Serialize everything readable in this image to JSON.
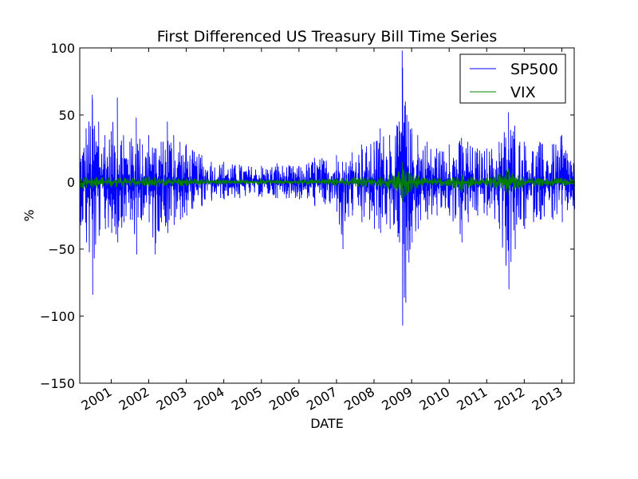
{
  "chart_data": {
    "type": "line",
    "title": "First Differenced US Treasury Bill Time Series",
    "xlabel": "DATE",
    "ylabel": "%",
    "ylim": [
      -150,
      100
    ],
    "yticks": [
      100,
      50,
      0,
      -50,
      -100,
      -150
    ],
    "ytick_labels": [
      "100",
      "50",
      "0",
      "−50",
      "−100",
      "−150"
    ],
    "xlim": [
      "2000-03-01",
      "2013-05-01"
    ],
    "xticks": [
      "2001-01-01",
      "2002-01-01",
      "2003-01-01",
      "2004-01-01",
      "2005-01-01",
      "2006-01-01",
      "2007-01-01",
      "2008-01-01",
      "2009-01-01",
      "2010-01-01",
      "2011-01-01",
      "2012-01-01",
      "2013-01-01"
    ],
    "xtick_labels": [
      "2001",
      "2002",
      "2003",
      "2004",
      "2005",
      "2006",
      "2007",
      "2008",
      "2009",
      "2010",
      "2011",
      "2012",
      "2013"
    ],
    "grid": false,
    "legend_position": "top-right",
    "series": [
      {
        "name": "SP500",
        "color": "#0000ff",
        "envelope": {
          "x": [
            "2000-03-01",
            "2000-05-01",
            "2000-07-01",
            "2000-09-01",
            "2000-11-01",
            "2001-01-01",
            "2001-03-01",
            "2001-05-01",
            "2001-07-01",
            "2001-09-01",
            "2001-11-01",
            "2002-01-01",
            "2002-03-01",
            "2002-05-01",
            "2002-07-01",
            "2002-09-01",
            "2002-11-01",
            "2003-01-01",
            "2003-03-01",
            "2003-06-01",
            "2003-09-01",
            "2004-01-01",
            "2004-06-01",
            "2005-01-01",
            "2005-06-01",
            "2006-01-01",
            "2006-06-01",
            "2007-01-01",
            "2007-03-01",
            "2007-06-01",
            "2007-09-01",
            "2008-01-01",
            "2008-03-01",
            "2008-06-01",
            "2008-09-01",
            "2008-10-01",
            "2008-11-01",
            "2008-12-01",
            "2009-01-01",
            "2009-03-01",
            "2009-06-01",
            "2009-09-01",
            "2010-01-01",
            "2010-05-01",
            "2010-07-01",
            "2010-10-01",
            "2011-01-01",
            "2011-05-01",
            "2011-08-01",
            "2011-10-01",
            "2012-01-01",
            "2012-06-01",
            "2012-10-01",
            "2013-01-01",
            "2013-05-01"
          ],
          "hi": [
            30,
            40,
            65,
            45,
            35,
            38,
            63,
            35,
            30,
            48,
            28,
            35,
            25,
            30,
            45,
            35,
            30,
            28,
            24,
            20,
            15,
            15,
            13,
            12,
            14,
            12,
            18,
            20,
            15,
            22,
            28,
            30,
            40,
            35,
            45,
            98,
            60,
            45,
            40,
            35,
            30,
            25,
            28,
            33,
            30,
            25,
            25,
            30,
            52,
            42,
            30,
            30,
            28,
            35,
            20
          ],
          "lo": [
            -30,
            -45,
            -84,
            -40,
            -35,
            -38,
            -45,
            -30,
            -28,
            -54,
            -25,
            -30,
            -54,
            -30,
            -38,
            -32,
            -28,
            -25,
            -20,
            -18,
            -14,
            -13,
            -12,
            -11,
            -12,
            -13,
            -18,
            -22,
            -50,
            -25,
            -30,
            -35,
            -38,
            -35,
            -45,
            -107,
            -90,
            -60,
            -45,
            -35,
            -28,
            -25,
            -25,
            -45,
            -30,
            -25,
            -25,
            -35,
            -80,
            -50,
            -35,
            -28,
            -28,
            -30,
            -20
          ]
        }
      },
      {
        "name": "VIX",
        "color": "#008000",
        "envelope": {
          "x": [
            "2000-03-01",
            "2001-01-01",
            "2002-01-01",
            "2003-01-01",
            "2004-01-01",
            "2005-01-01",
            "2006-01-01",
            "2007-01-01",
            "2007-09-01",
            "2008-03-01",
            "2008-09-01",
            "2008-10-01",
            "2008-12-01",
            "2009-06-01",
            "2010-01-01",
            "2010-05-01",
            "2010-08-01",
            "2011-01-01",
            "2011-08-01",
            "2011-11-01",
            "2012-06-01",
            "2013-01-01",
            "2013-05-01"
          ],
          "hi": [
            5,
            4,
            4,
            3,
            2,
            2,
            2,
            3,
            4,
            4,
            8,
            15,
            8,
            3,
            3,
            8,
            4,
            3,
            10,
            5,
            3,
            3,
            3
          ],
          "lo": [
            -5,
            -4,
            -4,
            -3,
            -2,
            -2,
            -2,
            -3,
            -4,
            -4,
            -8,
            -15,
            -8,
            -3,
            -3,
            -8,
            -4,
            -3,
            -10,
            -5,
            -3,
            -3,
            -3
          ]
        }
      }
    ]
  }
}
